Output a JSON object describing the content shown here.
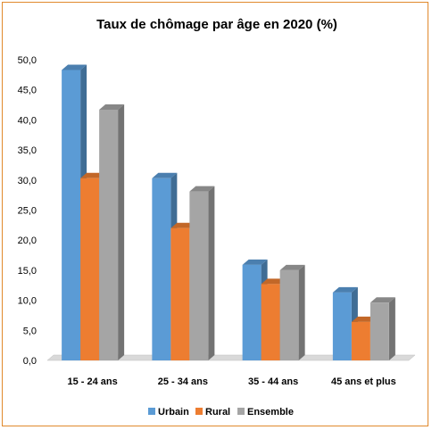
{
  "chart_data": {
    "type": "bar",
    "title": "Taux de chômage par âge en 2020 (%)",
    "xlabel": "",
    "ylabel": "",
    "categories": [
      "15 - 24 ans",
      "25 - 34 ans",
      "35 - 44 ans",
      "45 ans et plus"
    ],
    "series": [
      {
        "name": "Urbain",
        "values": [
          48.3,
          30.3,
          15.9,
          11.3
        ],
        "color": "#5b9bd5"
      },
      {
        "name": "Rural",
        "values": [
          30.3,
          22.0,
          12.7,
          6.4
        ],
        "color": "#ed7d31"
      },
      {
        "name": "Ensemble",
        "values": [
          41.7,
          28.1,
          15.0,
          9.6
        ],
        "color": "#a5a5a5"
      }
    ],
    "yticks": [
      "0,0",
      "5,0",
      "10,0",
      "15,0",
      "20,0",
      "25,0",
      "30,0",
      "35,0",
      "40,0",
      "45,0",
      "50,0"
    ],
    "ylim": [
      0,
      50
    ],
    "grid": false,
    "legend_position": "bottom",
    "three_d": true
  }
}
